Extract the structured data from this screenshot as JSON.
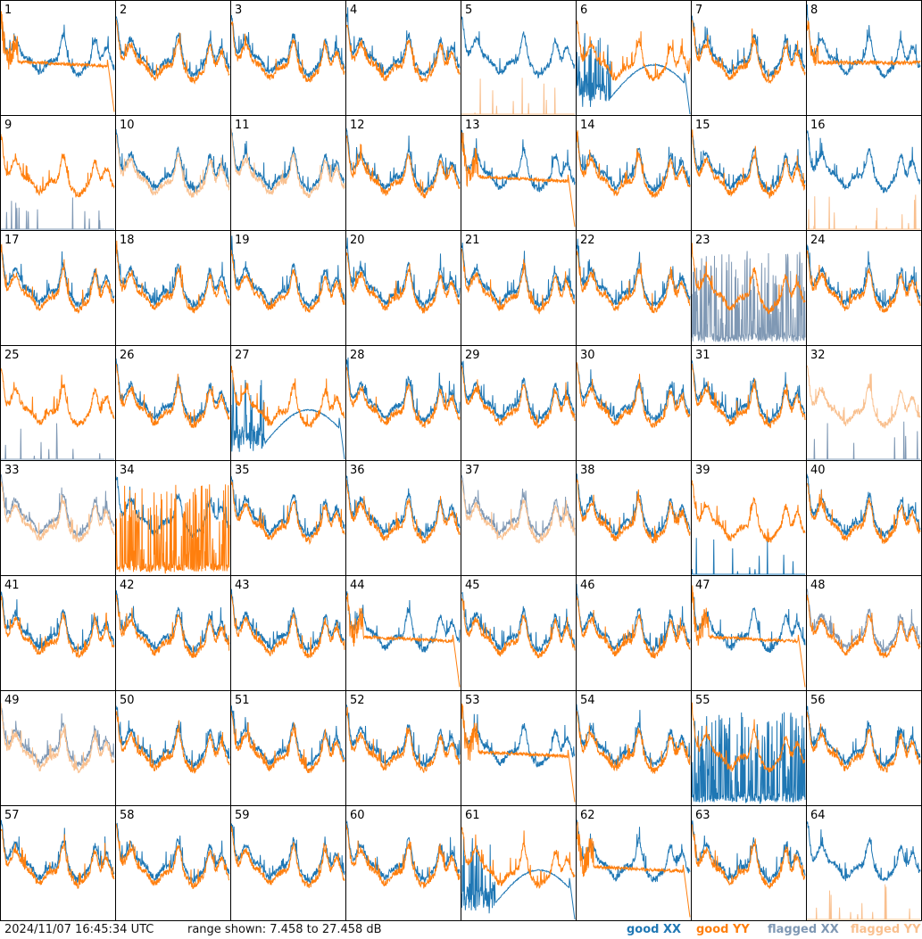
{
  "footer": {
    "timestamp": "2024/11/07 16:45:34 UTC",
    "range_text": "range shown: 7.458 to 27.458 dB"
  },
  "legend": {
    "good_xx": {
      "label": "good XX",
      "color": "#1f77b4"
    },
    "good_yy": {
      "label": "good YY",
      "color": "#ff7f0e"
    },
    "flagged_xx": {
      "label": "flagged XX",
      "color": "#7f98b4"
    },
    "flagged_yy": {
      "label": "flagged YY",
      "color": "#f9c08f"
    }
  },
  "chart_data": {
    "type": "line",
    "grid": "8x8 small multiples",
    "ylim": [
      7.458,
      27.458
    ],
    "yunit": "dB",
    "panels": [
      {
        "label": "1",
        "xx": "good",
        "yy": "good",
        "xx_shape": "normal",
        "yy_shape": "dropout_flat"
      },
      {
        "label": "2",
        "xx": "good",
        "yy": "good",
        "xx_shape": "normal",
        "yy_shape": "normal"
      },
      {
        "label": "3",
        "xx": "good",
        "yy": "good",
        "xx_shape": "normal",
        "yy_shape": "normal"
      },
      {
        "label": "4",
        "xx": "good",
        "yy": "good",
        "xx_shape": "normal",
        "yy_shape": "normal"
      },
      {
        "label": "5",
        "xx": "good",
        "yy": "flagged",
        "xx_shape": "normal",
        "yy_shape": "sparse_spikes"
      },
      {
        "label": "6",
        "xx": "good",
        "yy": "good",
        "xx_shape": "dropout_curve",
        "yy_shape": "normal"
      },
      {
        "label": "7",
        "xx": "good",
        "yy": "good",
        "xx_shape": "normal",
        "yy_shape": "normal"
      },
      {
        "label": "8",
        "xx": "good",
        "yy": "good",
        "xx_shape": "normal",
        "yy_shape": "flat_high"
      },
      {
        "label": "9",
        "xx": "flagged",
        "yy": "good",
        "xx_shape": "sparse_spikes",
        "yy_shape": "normal"
      },
      {
        "label": "10",
        "xx": "good",
        "yy": "flagged",
        "xx_shape": "normal",
        "yy_shape": "normal"
      },
      {
        "label": "11",
        "xx": "good",
        "yy": "flagged",
        "xx_shape": "normal",
        "yy_shape": "normal"
      },
      {
        "label": "12",
        "xx": "good",
        "yy": "good",
        "xx_shape": "normal",
        "yy_shape": "normal"
      },
      {
        "label": "13",
        "xx": "good",
        "yy": "good",
        "xx_shape": "normal",
        "yy_shape": "dropout_flat"
      },
      {
        "label": "14",
        "xx": "good",
        "yy": "good",
        "xx_shape": "normal",
        "yy_shape": "normal"
      },
      {
        "label": "15",
        "xx": "good",
        "yy": "good",
        "xx_shape": "normal",
        "yy_shape": "normal"
      },
      {
        "label": "16",
        "xx": "good",
        "yy": "flagged",
        "xx_shape": "normal",
        "yy_shape": "sparse_spikes"
      },
      {
        "label": "17",
        "xx": "good",
        "yy": "good",
        "xx_shape": "normal",
        "yy_shape": "normal"
      },
      {
        "label": "18",
        "xx": "good",
        "yy": "good",
        "xx_shape": "normal",
        "yy_shape": "normal"
      },
      {
        "label": "19",
        "xx": "good",
        "yy": "good",
        "xx_shape": "normal",
        "yy_shape": "normal"
      },
      {
        "label": "20",
        "xx": "good",
        "yy": "good",
        "xx_shape": "normal",
        "yy_shape": "normal"
      },
      {
        "label": "21",
        "xx": "good",
        "yy": "good",
        "xx_shape": "normal",
        "yy_shape": "normal"
      },
      {
        "label": "22",
        "xx": "good",
        "yy": "good",
        "xx_shape": "normal",
        "yy_shape": "normal"
      },
      {
        "label": "23",
        "xx": "flagged",
        "yy": "good",
        "xx_shape": "dense_spikes",
        "yy_shape": "normal"
      },
      {
        "label": "24",
        "xx": "good",
        "yy": "good",
        "xx_shape": "normal",
        "yy_shape": "normal"
      },
      {
        "label": "25",
        "xx": "flagged",
        "yy": "good",
        "xx_shape": "sparse_spikes",
        "yy_shape": "normal"
      },
      {
        "label": "26",
        "xx": "good",
        "yy": "good",
        "xx_shape": "normal",
        "yy_shape": "normal"
      },
      {
        "label": "27",
        "xx": "good",
        "yy": "good",
        "xx_shape": "dropout_curve",
        "yy_shape": "normal"
      },
      {
        "label": "28",
        "xx": "good",
        "yy": "good",
        "xx_shape": "normal",
        "yy_shape": "normal"
      },
      {
        "label": "29",
        "xx": "good",
        "yy": "good",
        "xx_shape": "normal",
        "yy_shape": "normal"
      },
      {
        "label": "30",
        "xx": "good",
        "yy": "good",
        "xx_shape": "normal",
        "yy_shape": "normal"
      },
      {
        "label": "31",
        "xx": "good",
        "yy": "good",
        "xx_shape": "normal",
        "yy_shape": "normal"
      },
      {
        "label": "32",
        "xx": "flagged",
        "yy": "flagged",
        "xx_shape": "sparse_spikes",
        "yy_shape": "normal"
      },
      {
        "label": "33",
        "xx": "flagged",
        "yy": "flagged",
        "xx_shape": "normal",
        "yy_shape": "normal"
      },
      {
        "label": "34",
        "xx": "good",
        "yy": "good",
        "xx_shape": "normal",
        "yy_shape": "dense_spikes"
      },
      {
        "label": "35",
        "xx": "good",
        "yy": "good",
        "xx_shape": "normal",
        "yy_shape": "normal"
      },
      {
        "label": "36",
        "xx": "good",
        "yy": "good",
        "xx_shape": "normal",
        "yy_shape": "normal"
      },
      {
        "label": "37",
        "xx": "flagged",
        "yy": "flagged",
        "xx_shape": "normal",
        "yy_shape": "normal"
      },
      {
        "label": "38",
        "xx": "good",
        "yy": "good",
        "xx_shape": "normal",
        "yy_shape": "normal"
      },
      {
        "label": "39",
        "xx": "good",
        "yy": "good",
        "xx_shape": "sparse_spikes",
        "yy_shape": "normal"
      },
      {
        "label": "40",
        "xx": "good",
        "yy": "good",
        "xx_shape": "normal",
        "yy_shape": "normal"
      },
      {
        "label": "41",
        "xx": "good",
        "yy": "good",
        "xx_shape": "normal",
        "yy_shape": "normal"
      },
      {
        "label": "42",
        "xx": "good",
        "yy": "good",
        "xx_shape": "normal",
        "yy_shape": "normal"
      },
      {
        "label": "43",
        "xx": "good",
        "yy": "good",
        "xx_shape": "normal",
        "yy_shape": "normal"
      },
      {
        "label": "44",
        "xx": "good",
        "yy": "good",
        "xx_shape": "normal",
        "yy_shape": "dropout_flat"
      },
      {
        "label": "45",
        "xx": "good",
        "yy": "good",
        "xx_shape": "normal",
        "yy_shape": "normal"
      },
      {
        "label": "46",
        "xx": "good",
        "yy": "good",
        "xx_shape": "normal",
        "yy_shape": "normal"
      },
      {
        "label": "47",
        "xx": "good",
        "yy": "good",
        "xx_shape": "normal",
        "yy_shape": "dropout_flat"
      },
      {
        "label": "48",
        "xx": "flagged",
        "yy": "good",
        "xx_shape": "normal",
        "yy_shape": "normal"
      },
      {
        "label": "49",
        "xx": "flagged",
        "yy": "flagged",
        "xx_shape": "normal",
        "yy_shape": "normal"
      },
      {
        "label": "50",
        "xx": "good",
        "yy": "good",
        "xx_shape": "normal",
        "yy_shape": "normal"
      },
      {
        "label": "51",
        "xx": "good",
        "yy": "good",
        "xx_shape": "normal",
        "yy_shape": "normal"
      },
      {
        "label": "52",
        "xx": "good",
        "yy": "good",
        "xx_shape": "normal",
        "yy_shape": "normal"
      },
      {
        "label": "53",
        "xx": "good",
        "yy": "good",
        "xx_shape": "normal",
        "yy_shape": "dropout_flat"
      },
      {
        "label": "54",
        "xx": "good",
        "yy": "good",
        "xx_shape": "normal",
        "yy_shape": "normal"
      },
      {
        "label": "55",
        "xx": "good",
        "yy": "good",
        "xx_shape": "dense_spikes",
        "yy_shape": "normal"
      },
      {
        "label": "56",
        "xx": "good",
        "yy": "good",
        "xx_shape": "normal",
        "yy_shape": "normal"
      },
      {
        "label": "57",
        "xx": "good",
        "yy": "good",
        "xx_shape": "normal",
        "yy_shape": "normal"
      },
      {
        "label": "58",
        "xx": "good",
        "yy": "good",
        "xx_shape": "normal",
        "yy_shape": "normal"
      },
      {
        "label": "59",
        "xx": "good",
        "yy": "good",
        "xx_shape": "normal",
        "yy_shape": "normal"
      },
      {
        "label": "60",
        "xx": "good",
        "yy": "good",
        "xx_shape": "normal",
        "yy_shape": "normal"
      },
      {
        "label": "61",
        "xx": "good",
        "yy": "good",
        "xx_shape": "dropout_curve",
        "yy_shape": "normal"
      },
      {
        "label": "62",
        "xx": "good",
        "yy": "good",
        "xx_shape": "normal",
        "yy_shape": "dropout_flat"
      },
      {
        "label": "63",
        "xx": "good",
        "yy": "good",
        "xx_shape": "normal",
        "yy_shape": "normal"
      },
      {
        "label": "64",
        "xx": "good",
        "yy": "flagged",
        "xx_shape": "normal",
        "yy_shape": "sparse_spikes"
      }
    ]
  }
}
